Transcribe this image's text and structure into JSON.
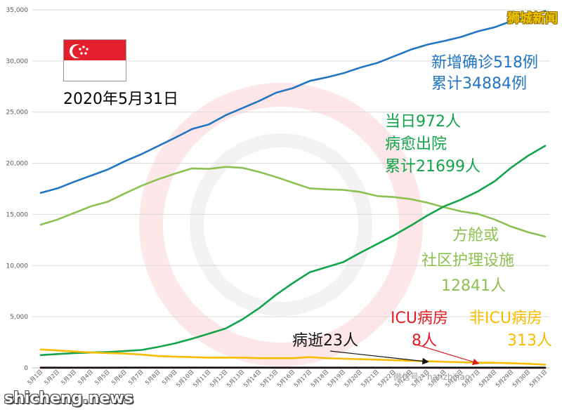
{
  "brand": {
    "logo_text": "狮城新闻",
    "site_text": "shicheng.news",
    "wechat_text": "微信号：hanzhijiao"
  },
  "date_label": "2020年5月31日",
  "colors": {
    "confirmed": "#2175c2",
    "recovered": "#13a34b",
    "community": "#8cc152",
    "icu": "#e31b23",
    "non_icu": "#f7bb00",
    "deaths": "#111111",
    "grid": "#d9d9d9"
  },
  "annotations": {
    "confirmed_line1": "新增确诊518例",
    "confirmed_line2": "累计34884例",
    "recovered_line1": "当日972人",
    "recovered_line2": "病愈出院",
    "recovered_line3": "累计21699人",
    "community_line1": "方舱或",
    "community_line2": "社区护理设施",
    "community_line3": "12841人",
    "icu_line1": "ICU病房",
    "icu_line2": "8人",
    "non_icu_line1": "非ICU病房",
    "non_icu_line2": "313人",
    "deaths": "病逝23人"
  },
  "chart_data": {
    "type": "line",
    "x": [
      "5月1日",
      "5月2日",
      "5月3日",
      "5月4日",
      "5月5日",
      "5月6日",
      "5月7日",
      "5月8日",
      "5月9日",
      "5月10日",
      "5月11日",
      "5月12日",
      "5月13日",
      "5月14日",
      "5月15日",
      "5月16日",
      "5月17日",
      "5月18日",
      "5月19日",
      "5月20日",
      "5月21日",
      "5月22日",
      "5月23日",
      "5月24日",
      "5月25日",
      "5月26日",
      "5月27日",
      "5月28日",
      "5月29日",
      "5月30日",
      "5月31日"
    ],
    "ylim": [
      0,
      35000
    ],
    "yticks": [
      0,
      5000,
      10000,
      15000,
      20000,
      25000,
      30000,
      35000
    ],
    "ytick_labels": [
      "0",
      "5,000",
      "10,000",
      "15,000",
      "20,000",
      "25,000",
      "30,000",
      "35,000"
    ],
    "grid": "horizontal",
    "series": [
      {
        "key": "confirmed",
        "values": [
          17100,
          17550,
          18200,
          18800,
          19400,
          20200,
          20900,
          21700,
          22500,
          23350,
          23800,
          24700,
          25400,
          26100,
          26900,
          27350,
          28050,
          28400,
          28800,
          29350,
          29800,
          30450,
          31100,
          31600,
          31950,
          32350,
          32900,
          33300,
          33900,
          34350,
          34884
        ]
      },
      {
        "key": "community",
        "values": [
          14000,
          14500,
          15150,
          15800,
          16250,
          17050,
          17800,
          18450,
          19000,
          19500,
          19450,
          19650,
          19550,
          19150,
          18650,
          18100,
          17550,
          17450,
          17400,
          17200,
          16800,
          16700,
          16500,
          16150,
          15700,
          15300,
          15050,
          14500,
          13800,
          13250,
          12841
        ]
      },
      {
        "key": "recovered",
        "values": [
          1250,
          1350,
          1450,
          1500,
          1550,
          1650,
          1750,
          2050,
          2400,
          2850,
          3350,
          3850,
          4750,
          5850,
          7150,
          8300,
          9350,
          9850,
          10350,
          11250,
          12100,
          12950,
          13900,
          14900,
          15800,
          16450,
          17250,
          18250,
          19600,
          20750,
          21699
        ]
      },
      {
        "key": "non_icu",
        "values": [
          1800,
          1700,
          1600,
          1500,
          1450,
          1400,
          1300,
          1150,
          1100,
          1050,
          1000,
          1000,
          1000,
          950,
          950,
          950,
          1050,
          950,
          900,
          850,
          800,
          750,
          700,
          650,
          600,
          550,
          500,
          500,
          450,
          400,
          313
        ]
      },
      {
        "key": "icu",
        "values": [
          25,
          24,
          23,
          22,
          21,
          20,
          20,
          20,
          20,
          20,
          20,
          19,
          18,
          18,
          17,
          16,
          16,
          15,
          14,
          13,
          13,
          12,
          12,
          11,
          10,
          10,
          10,
          9,
          9,
          8,
          8
        ]
      },
      {
        "key": "deaths",
        "values": [
          15,
          15,
          16,
          16,
          17,
          18,
          18,
          18,
          19,
          20,
          20,
          20,
          20,
          20,
          20,
          21,
          21,
          21,
          21,
          21,
          21,
          22,
          22,
          22,
          22,
          22,
          22,
          23,
          23,
          23,
          23
        ]
      }
    ]
  }
}
